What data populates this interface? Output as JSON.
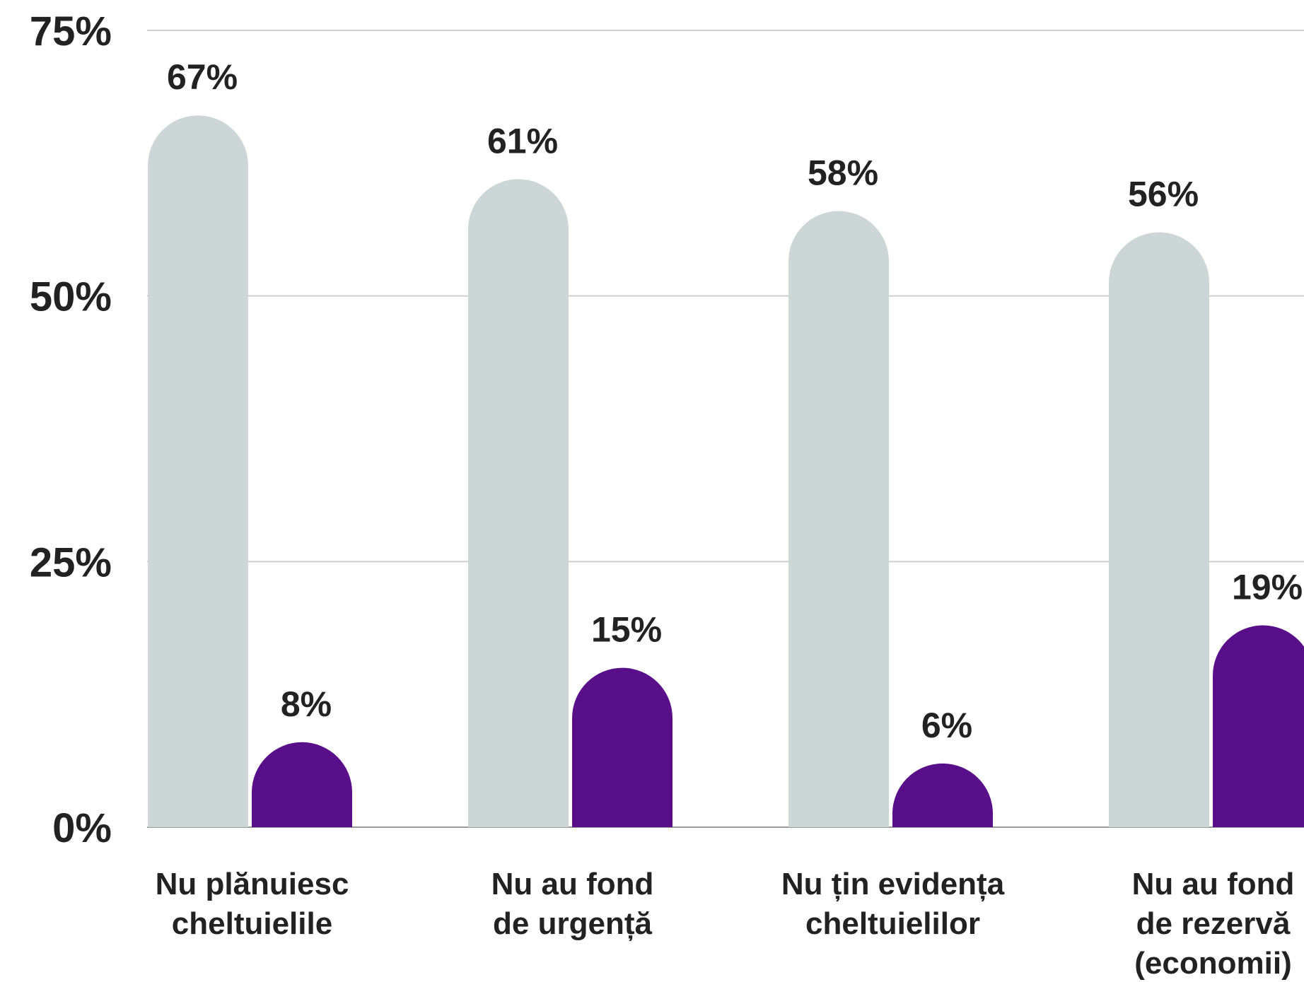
{
  "chart_data": {
    "type": "bar",
    "categories": [
      [
        "Nu plănuiesc",
        "cheltuielile"
      ],
      [
        "Nu au fond",
        "de urgență"
      ],
      [
        "Nu țin evidența",
        "cheltuielilor"
      ],
      [
        "Nu au fond",
        "de rezervă",
        "(economii)"
      ]
    ],
    "series": [
      {
        "values": [
          67,
          61,
          58,
          56
        ],
        "labels": [
          "67%",
          "61%",
          "58%",
          "56%"
        ],
        "color": "#ccd6d6"
      },
      {
        "values": [
          8,
          15,
          6,
          19
        ],
        "labels": [
          "8%",
          "15%",
          "6%",
          "19%"
        ],
        "color": "#5a0f8a"
      }
    ],
    "ylim": [
      0,
      75
    ],
    "yticks": [
      0,
      25,
      50,
      75
    ],
    "ytick_labels": [
      "0%",
      "25%",
      "50%",
      "75%"
    ],
    "grid": true,
    "legend": false,
    "gridline_color": "#cfcfcf",
    "text_color": "#222222"
  }
}
